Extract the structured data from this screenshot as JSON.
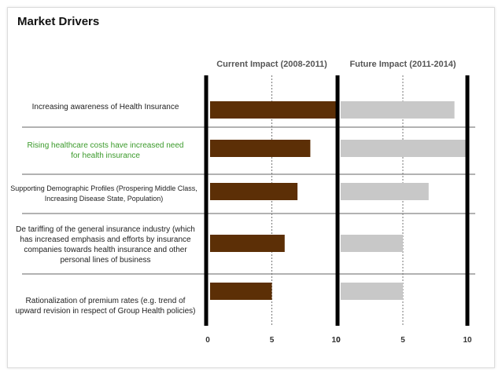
{
  "title": "Market Drivers",
  "colors": {
    "current_bar": "#5c2f06",
    "future_bar": "#c8c8c8",
    "highlight_text": "#3a9a2a",
    "text": "#222222"
  },
  "chart_data": {
    "type": "bar",
    "orientation": "horizontal",
    "title": "Market Drivers",
    "panels": [
      {
        "name": "Current Impact (2008-2011)",
        "xlim": [
          0,
          10
        ],
        "ticks": [
          "0",
          "5",
          "10"
        ],
        "reference_line": 5
      },
      {
        "name": "Future Impact (2011-2014)",
        "xlim": [
          0,
          10
        ],
        "ticks": [
          "0",
          "5",
          "10"
        ],
        "reference_line": 5
      }
    ],
    "categories": [
      "Increasing awareness of Health Insurance",
      "Rising healthcare costs have increased need for health insurance",
      "Supporting Demographic Profiles (Prospering Middle Class, Increasing Disease State, Population)",
      "De tariffing of the general insurance industry (which has increased emphasis and efforts by insurance companies towards health insurance and other personal lines of business",
      "Rationalization of premium rates (e.g. trend of upward revision in respect of Group Health policies)"
    ],
    "series": [
      {
        "name": "Current Impact (2008-2011)",
        "values": [
          10,
          8,
          7,
          6,
          5
        ]
      },
      {
        "name": "Future Impact (2011-2014)",
        "values": [
          9,
          10,
          7,
          5,
          5
        ]
      }
    ]
  }
}
